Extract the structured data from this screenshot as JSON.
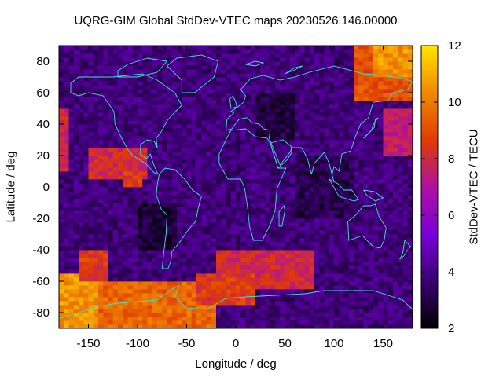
{
  "chart_data": {
    "type": "heatmap",
    "title": "UQRG-GIM Global StdDev-VTEC maps 20230526.146.00000",
    "xlabel": "Longitude / deg",
    "ylabel": "Latitude / deg",
    "colorbar_label": "StdDev-VTEC / TECU",
    "xlim": [
      -180,
      180
    ],
    "ylim": [
      -90,
      90
    ],
    "xticks": [
      -150,
      -100,
      -50,
      0,
      50,
      100,
      150
    ],
    "yticks": [
      -80,
      -60,
      -40,
      -20,
      0,
      20,
      40,
      60,
      80
    ],
    "colorbar_range": [
      2,
      12
    ],
    "colorbar_ticks": [
      2,
      4,
      6,
      8,
      10,
      12
    ],
    "colormap": [
      "#000000",
      "#3a0070",
      "#7a00d8",
      "#b010a0",
      "#e03c00",
      "#f08a00",
      "#ffe600"
    ],
    "grid": false,
    "coastline_color": "#40e0d0",
    "regions": [
      {
        "lon": [
          -180,
          180
        ],
        "lat": [
          -90,
          90
        ],
        "value": 3.8
      },
      {
        "lon": [
          -140,
          -20
        ],
        "lat": [
          -90,
          -60
        ],
        "value": 9.5
      },
      {
        "lon": [
          -180,
          -140
        ],
        "lat": [
          -90,
          -55
        ],
        "value": 10.5
      },
      {
        "lon": [
          -160,
          -130
        ],
        "lat": [
          -60,
          -40
        ],
        "value": 8.5
      },
      {
        "lon": [
          -20,
          80
        ],
        "lat": [
          -65,
          -40
        ],
        "value": 8.0
      },
      {
        "lon": [
          -40,
          20
        ],
        "lat": [
          -75,
          -55
        ],
        "value": 8.5
      },
      {
        "lon": [
          -150,
          -90
        ],
        "lat": [
          5,
          25
        ],
        "value": 8.0
      },
      {
        "lon": [
          -115,
          -95
        ],
        "lat": [
          0,
          10
        ],
        "value": 8.5
      },
      {
        "lon": [
          120,
          180
        ],
        "lat": [
          55,
          90
        ],
        "value": 9.0
      },
      {
        "lon": [
          140,
          180
        ],
        "lat": [
          70,
          90
        ],
        "value": 10.5
      },
      {
        "lon": [
          -180,
          -170
        ],
        "lat": [
          10,
          50
        ],
        "value": 8.0
      },
      {
        "lon": [
          150,
          180
        ],
        "lat": [
          20,
          50
        ],
        "value": 7.5
      },
      {
        "lon": [
          -100,
          -60
        ],
        "lat": [
          -40,
          -10
        ],
        "value": 2.8
      },
      {
        "lon": [
          20,
          60
        ],
        "lat": [
          30,
          60
        ],
        "value": 3.0
      },
      {
        "lon": [
          60,
          120
        ],
        "lat": [
          -20,
          20
        ],
        "value": 3.2
      }
    ]
  }
}
